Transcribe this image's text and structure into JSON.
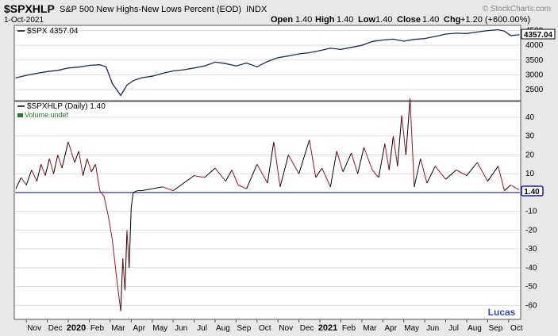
{
  "header": {
    "symbol": "$SPXHLP",
    "description": "S&P 500 New Highs-New Lows Percent (EOD)",
    "exchange": "INDX",
    "date": "1-Oct-2021",
    "watermark": "© StockCharts.com",
    "ohlc": {
      "open_label": "Open",
      "open": "1.40",
      "high_label": "High",
      "high": "1.40",
      "low_label": "Low",
      "low": "1.40",
      "close_label": "Close",
      "close": "1.40",
      "chg_label": "Chg",
      "chg": "+1.20 (+600.00%)"
    }
  },
  "signature": "Lucas",
  "colors": {
    "spx_line": "#1a2a5a",
    "hlp_up": "#000000",
    "hlp_down": "#b01010",
    "zero_line": "#1a1aa0",
    "value_tag_border": "#1a1aa0",
    "signature": "#3a4ab8"
  },
  "chart_data": [
    {
      "type": "line",
      "legend": "$SPX 4357.04",
      "last_value_label": "4357.04",
      "yticks": [
        2500,
        3000,
        3500,
        4000,
        4500
      ],
      "ylim": [
        2150,
        4650
      ],
      "xlim": [
        0,
        24
      ],
      "x": [
        0,
        0.5,
        1,
        1.5,
        2,
        2.5,
        3,
        3.5,
        4,
        4.3,
        4.6,
        5.0,
        5.3,
        5.6,
        6,
        6.5,
        7,
        7.5,
        8,
        8.5,
        9,
        9.5,
        10,
        10.5,
        11,
        11.5,
        12,
        12.5,
        13,
        13.5,
        14,
        14.5,
        15,
        15.5,
        16,
        16.5,
        17,
        17.5,
        18,
        18.5,
        19,
        19.5,
        20,
        20.5,
        21,
        21.5,
        22,
        22.5,
        23,
        23.3,
        23.6,
        24
      ],
      "y": [
        2900,
        2980,
        3050,
        3110,
        3150,
        3230,
        3260,
        3320,
        3340,
        3270,
        2700,
        2300,
        2650,
        2800,
        2900,
        2950,
        3050,
        3130,
        3170,
        3230,
        3300,
        3430,
        3380,
        3300,
        3400,
        3270,
        3450,
        3580,
        3640,
        3710,
        3750,
        3820,
        3900,
        3860,
        3930,
        4000,
        4130,
        4180,
        4210,
        4140,
        4200,
        4230,
        4300,
        4380,
        4410,
        4400,
        4450,
        4500,
        4530,
        4480,
        4330,
        4357
      ]
    },
    {
      "type": "line",
      "legend": "$SPXHLP (Daily) 1.40",
      "volume_note": "Volume undef",
      "last_value_label": "1.40",
      "yticks": [
        -60,
        -50,
        -40,
        -30,
        -20,
        -10,
        0,
        10,
        20,
        30,
        40
      ],
      "ylim": [
        -67,
        48
      ],
      "xlim": [
        0,
        24
      ],
      "x": [
        0,
        0.25,
        0.5,
        0.75,
        1.0,
        1.2,
        1.4,
        1.6,
        1.8,
        2.0,
        2.2,
        2.5,
        2.8,
        3.0,
        3.2,
        3.4,
        3.6,
        3.8,
        4.0,
        4.2,
        4.4,
        4.6,
        4.8,
        5.0,
        5.1,
        5.2,
        5.3,
        5.4,
        5.5,
        5.6,
        5.8,
        6.0,
        6.5,
        7.0,
        7.5,
        8.0,
        8.5,
        9.0,
        9.5,
        10.0,
        10.3,
        10.6,
        11.0,
        11.5,
        12.0,
        12.3,
        12.6,
        13.0,
        13.5,
        14.0,
        14.3,
        14.6,
        15.0,
        15.3,
        15.6,
        16.0,
        16.3,
        16.6,
        17.0,
        17.3,
        17.6,
        17.8,
        18.0,
        18.2,
        18.4,
        18.6,
        18.8,
        19.0,
        19.3,
        19.6,
        20.0,
        20.5,
        21.0,
        21.5,
        22.0,
        22.5,
        23.0,
        23.3,
        23.6,
        24.0
      ],
      "y": [
        2,
        8,
        4,
        12,
        6,
        15,
        9,
        18,
        10,
        20,
        13,
        27,
        16,
        22,
        9,
        18,
        11,
        15,
        1,
        -2,
        -12,
        -25,
        -45,
        -63,
        -35,
        -52,
        -20,
        -40,
        -8,
        0,
        1,
        1,
        2,
        3,
        1,
        5,
        9,
        8,
        13,
        6,
        12,
        4,
        2,
        15,
        5,
        27,
        3,
        20,
        10,
        28,
        8,
        13,
        3,
        22,
        11,
        21,
        10,
        24,
        12,
        8,
        26,
        12,
        30,
        14,
        41,
        20,
        50,
        3,
        18,
        5,
        14,
        7,
        12,
        9,
        16,
        6,
        14,
        1,
        4,
        1.4
      ]
    }
  ],
  "x_axis": {
    "labels": [
      "Nov",
      "Dec",
      "2020",
      "Feb",
      "Mar",
      "Apr",
      "May",
      "Jun",
      "Jul",
      "Aug",
      "Sep",
      "Oct",
      "Nov",
      "Dec",
      "2021",
      "Feb",
      "Mar",
      "Apr",
      "May",
      "Jun",
      "Jul",
      "Aug",
      "Sep",
      "Oct"
    ],
    "bold": [
      "2020",
      "2021"
    ]
  }
}
